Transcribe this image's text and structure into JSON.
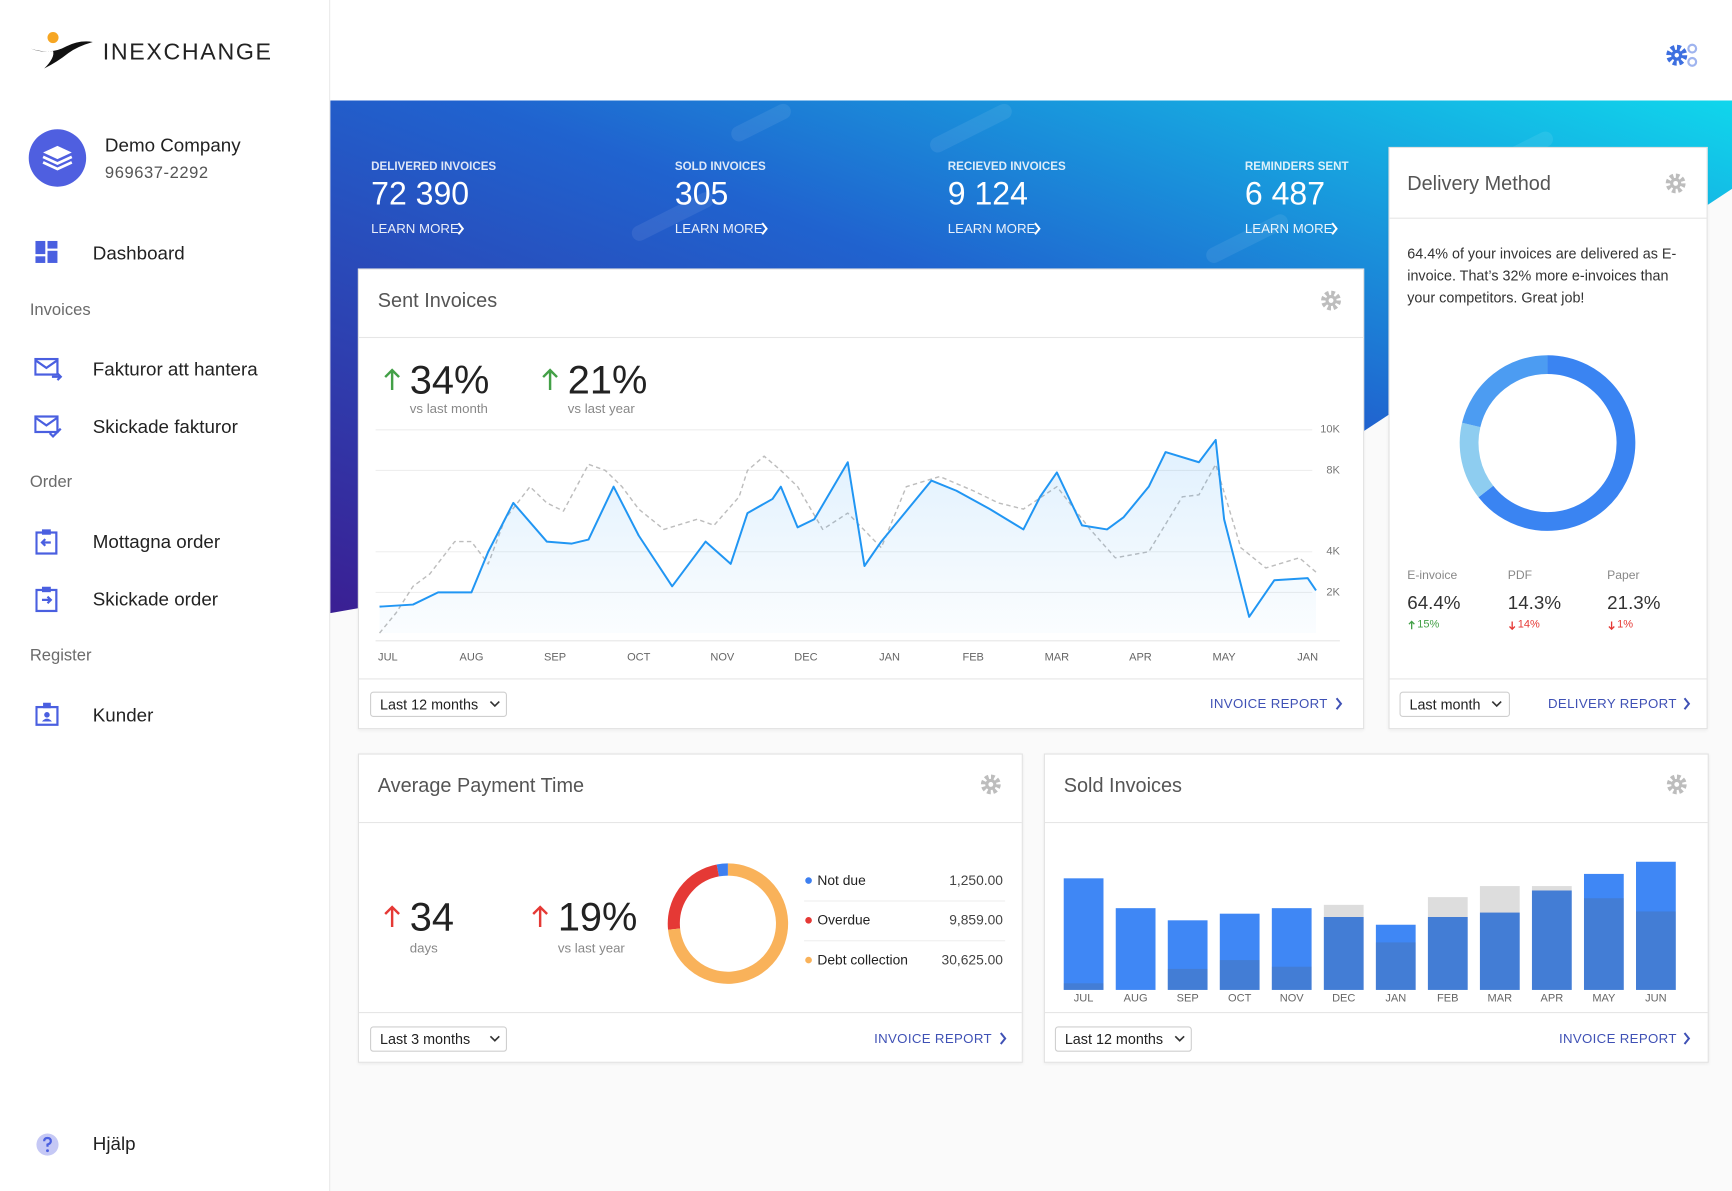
{
  "brand": "INEXCHANGE",
  "company": {
    "name": "Demo Company",
    "org_number": "969637-2292"
  },
  "nav": {
    "dashboard": "Dashboard",
    "sections": [
      {
        "title": "Invoices",
        "items": [
          "Fakturor att hantera",
          "Skickade fakturor"
        ]
      },
      {
        "title": "Order",
        "items": [
          "Mottagna order",
          "Skickade order"
        ]
      },
      {
        "title": "Register",
        "items": [
          "Kunder"
        ]
      }
    ],
    "help": "Hjälp"
  },
  "stats": [
    {
      "label": "DELIVERED INVOICES",
      "value": "72 390",
      "link": "LEARN MORE"
    },
    {
      "label": "SOLD INVOICES",
      "value": "305",
      "link": "LEARN MORE"
    },
    {
      "label": "RECIEVED INVOICES",
      "value": "9 124",
      "link": "LEARN MORE"
    },
    {
      "label": "REMINDERS SENT",
      "value": "6 487",
      "link": "LEARN MORE"
    }
  ],
  "sent_invoices": {
    "title": "Sent Invoices",
    "kpis": [
      {
        "value": "34%",
        "caption": "vs last month",
        "trend": "up",
        "color": "#43a047"
      },
      {
        "value": "21%",
        "caption": "vs last year",
        "trend": "up",
        "color": "#43a047"
      }
    ],
    "chart": {
      "type": "line",
      "xlim": [
        -0.2,
        11.2
      ],
      "xticks": [
        {
          "value": 0,
          "label": "JUL"
        },
        {
          "value": 1,
          "label": "AUG"
        },
        {
          "value": 2,
          "label": "SEP"
        },
        {
          "value": 3,
          "label": "OCT"
        },
        {
          "value": 4,
          "label": "NOV"
        },
        {
          "value": 5,
          "label": "DEC"
        },
        {
          "value": 6,
          "label": "JAN"
        },
        {
          "value": 7,
          "label": "FEB"
        },
        {
          "value": 8,
          "label": "MAR"
        },
        {
          "value": 9,
          "label": "APR"
        },
        {
          "value": 10,
          "label": "MAY"
        },
        {
          "value": 11,
          "label": "JAN"
        }
      ],
      "ylim": [
        0,
        10000
      ],
      "yticks": [
        {
          "value": 2000,
          "label": "2K"
        },
        {
          "value": 4000,
          "label": "4K"
        },
        {
          "value": 8000,
          "label": "8K"
        },
        {
          "value": 10000,
          "label": "10K"
        }
      ],
      "grid": true,
      "series": [
        {
          "color": "#2196f3",
          "fill_area": true,
          "x": [
            -0.1,
            0.3,
            0.6,
            1.0,
            1.2,
            1.5,
            1.9,
            2.2,
            2.4,
            2.7,
            3.0,
            3.4,
            3.8,
            4.1,
            4.3,
            4.6,
            4.7,
            4.9,
            5.1,
            5.5,
            5.7,
            5.9,
            6.2,
            6.5,
            6.8,
            7.2,
            7.6,
            7.8,
            8.0,
            8.3,
            8.6,
            8.8,
            9.1,
            9.3,
            9.7,
            9.9,
            10.0,
            10.3,
            10.6,
            11.0,
            11.1
          ],
          "values": [
            1300,
            1400,
            2000,
            2000,
            4000,
            6400,
            4500,
            4400,
            4600,
            7200,
            4800,
            2300,
            4500,
            3400,
            5900,
            6600,
            7200,
            5200,
            5600,
            8400,
            3300,
            4500,
            6000,
            7500,
            7000,
            6100,
            5100,
            6700,
            7900,
            5300,
            5100,
            5700,
            7200,
            8900,
            8400,
            9500,
            5600,
            800,
            2600,
            2700,
            2100
          ]
        },
        {
          "color": "#bdbdbd",
          "dashed": true,
          "x": [
            -0.1,
            0.1,
            0.3,
            0.5,
            0.8,
            1.0,
            1.2,
            1.4,
            1.7,
            1.9,
            2.1,
            2.4,
            2.6,
            2.8,
            3.0,
            3.3,
            3.7,
            3.9,
            4.2,
            4.3,
            4.5,
            4.7,
            4.9,
            5.2,
            5.5,
            5.9,
            6.2,
            6.6,
            7.0,
            7.3,
            7.6,
            8.0,
            8.4,
            8.7,
            9.1,
            9.5,
            9.7,
            9.9,
            10.2,
            10.5,
            10.9,
            11.1
          ],
          "values": [
            0,
            1000,
            2300,
            2900,
            4500,
            4500,
            3400,
            5600,
            7200,
            6400,
            6000,
            8300,
            8000,
            7200,
            6100,
            5100,
            5600,
            5300,
            6700,
            8000,
            8700,
            8000,
            7200,
            5100,
            5900,
            4200,
            7200,
            7700,
            7000,
            6400,
            6100,
            7200,
            5100,
            3700,
            4000,
            6700,
            6800,
            8300,
            4200,
            3200,
            3700,
            3000
          ]
        }
      ]
    },
    "period": "Last 12 months",
    "link": "INVOICE REPORT"
  },
  "delivery_method": {
    "title": "Delivery Method",
    "text": "64.4% of your invoices are delivered as E-invoice. That’s 32% more e-invoices than your competitors. Great job!",
    "chart": {
      "type": "donut",
      "categories": [
        "E-invoice",
        "PDF",
        "Paper"
      ],
      "values": [
        64.4,
        14.3,
        21.3
      ],
      "value_labels": [
        "64.4%",
        "14.3%",
        "21.3%"
      ],
      "colors": [
        "#3a84f2",
        "#8ecdf0",
        "#4c9cf2"
      ],
      "changes": [
        {
          "label": "15%",
          "trend": "up"
        },
        {
          "label": "14%",
          "trend": "down"
        },
        {
          "label": "1%",
          "trend": "down"
        }
      ]
    },
    "period": "Last month",
    "link": "DELIVERY REPORT"
  },
  "average_payment_time": {
    "title": "Average Payment Time",
    "kpis": [
      {
        "value": "34",
        "caption": "days",
        "trend": "up",
        "color": "#e53935"
      },
      {
        "value": "19%",
        "caption": "vs last year",
        "trend": "up",
        "color": "#e53935"
      }
    ],
    "chart": {
      "type": "donut",
      "categories": [
        "Not due",
        "Overdue",
        "Debt collection"
      ],
      "values": [
        1250,
        9859,
        30625
      ],
      "value_labels": [
        "1,250.00",
        "9,859.00",
        "30,625.00"
      ],
      "colors": [
        "#3d7ff0",
        "#e53935",
        "#f9b25a"
      ]
    },
    "period": "Last 3 months",
    "link": "INVOICE REPORT"
  },
  "sold_invoices": {
    "title": "Sold Invoices",
    "chart": {
      "type": "bar",
      "categories": [
        "JUL",
        "AUG",
        "SEP",
        "OCT",
        "NOV",
        "DEC",
        "JAN",
        "FEB",
        "MAR",
        "APR",
        "MAY",
        "JUN"
      ],
      "ylim": [
        0,
        120
      ],
      "series": [
        {
          "color": "#3f87f5",
          "values": [
            101,
            74,
            63,
            69,
            74,
            66,
            59,
            66,
            70,
            90,
            105,
            116
          ]
        },
        {
          "color": "#555555",
          "opacity": 0.2,
          "values": [
            6,
            0,
            19,
            27,
            21,
            77,
            43,
            84,
            94,
            94,
            83,
            71
          ]
        }
      ]
    },
    "period": "Last 12 months",
    "link": "INVOICE REPORT"
  }
}
